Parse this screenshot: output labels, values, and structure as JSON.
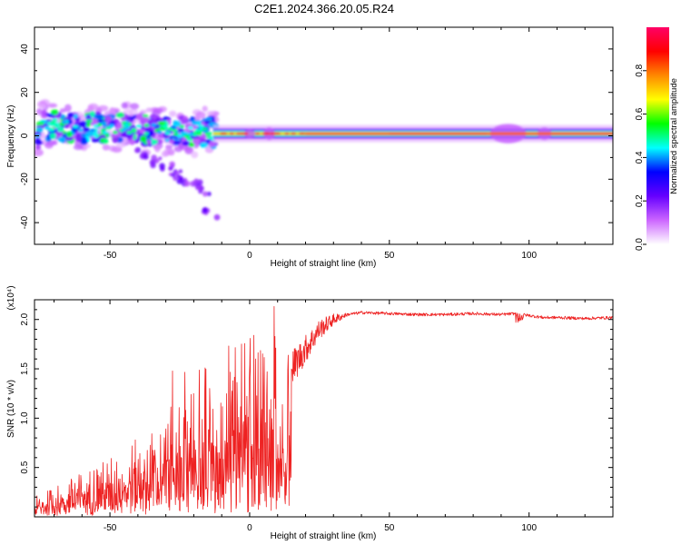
{
  "title": "C2E1.2024.366.20.05.R24",
  "chart_data": [
    {
      "type": "heatmap",
      "title": "C2E1.2024.366.20.05.R24",
      "xlabel": "Height of straight line (km)",
      "ylabel": "Frequency (Hz)",
      "xlim": [
        -77,
        130
      ],
      "ylim": [
        -50,
        50
      ],
      "xticks": [
        -50,
        0,
        50,
        100
      ],
      "yticks": [
        40,
        20,
        0,
        -20,
        -40
      ],
      "colorbar": {
        "label": "Normalized spectral amplitude",
        "range": [
          0,
          1
        ],
        "ticks": [
          "0.0",
          "0.2",
          "0.4",
          "0.6",
          "0.8"
        ],
        "colormap": [
          "#ffffff",
          "#cc66ff",
          "#6600ff",
          "#0000ff",
          "#00ffff",
          "#00ff00",
          "#ffff00",
          "#ff8800",
          "#ff0000",
          "#ff0066"
        ]
      },
      "ridge": [
        {
          "x": -75,
          "f": 4
        },
        {
          "x": -70,
          "f": 5
        },
        {
          "x": -65,
          "f": 4
        },
        {
          "x": -60,
          "f": 3
        },
        {
          "x": -55,
          "f": 4
        },
        {
          "x": -50,
          "f": 3
        },
        {
          "x": -45,
          "f": 4
        },
        {
          "x": -40,
          "f": 3
        },
        {
          "x": -35,
          "f": 3
        },
        {
          "x": -30,
          "f": 2
        },
        {
          "x": -25,
          "f": 2
        },
        {
          "x": -20,
          "f": 2
        },
        {
          "x": -15,
          "f": 2
        },
        {
          "x": -10,
          "f": 1
        },
        {
          "x": 0,
          "f": 1
        },
        {
          "x": 10,
          "f": 1
        },
        {
          "x": 20,
          "f": 1
        },
        {
          "x": 40,
          "f": 1
        },
        {
          "x": 60,
          "f": 1
        },
        {
          "x": 80,
          "f": 1
        },
        {
          "x": 100,
          "f": 1
        },
        {
          "x": 130,
          "f": 1
        }
      ],
      "scattered_branch": [
        {
          "x": -38,
          "f": -8
        },
        {
          "x": -34,
          "f": -12
        },
        {
          "x": -30,
          "f": -15
        },
        {
          "x": -27,
          "f": -18
        },
        {
          "x": -24,
          "f": -20
        },
        {
          "x": -20,
          "f": -22
        },
        {
          "x": -17,
          "f": -25
        },
        {
          "x": -14,
          "f": -36
        }
      ]
    },
    {
      "type": "line",
      "xlabel": "Height of straight line (km)",
      "ylabel": "SNR (10 * v/v)",
      "y_multiplier_label": "(x10⁴)",
      "xlim": [
        -77,
        130
      ],
      "ylim": [
        0,
        2.2
      ],
      "xticks": [
        -50,
        0,
        50,
        100
      ],
      "yticks": [
        "0.5",
        "1.0",
        "1.5",
        "2.0"
      ],
      "color": "#ee2222",
      "series": [
        {
          "name": "SNR",
          "x": [
            -77,
            -70,
            -60,
            -50,
            -40,
            -30,
            -20,
            -15,
            -10,
            -5,
            0,
            5,
            8,
            10,
            11,
            12,
            15,
            20,
            25,
            30,
            35,
            40,
            50,
            60,
            70,
            80,
            90,
            95,
            100,
            105,
            110,
            120,
            130
          ],
          "y": [
            0.2,
            0.3,
            0.45,
            0.6,
            0.8,
            0.95,
            1.1,
            1.25,
            1.35,
            1.4,
            1.45,
            1.6,
            1.9,
            1.3,
            0.7,
            1.3,
            1.5,
            1.7,
            1.9,
            2.0,
            2.05,
            2.07,
            2.06,
            2.05,
            2.05,
            2.06,
            2.05,
            2.06,
            2.04,
            2.02,
            2.02,
            2.01,
            2.02
          ]
        }
      ]
    }
  ]
}
